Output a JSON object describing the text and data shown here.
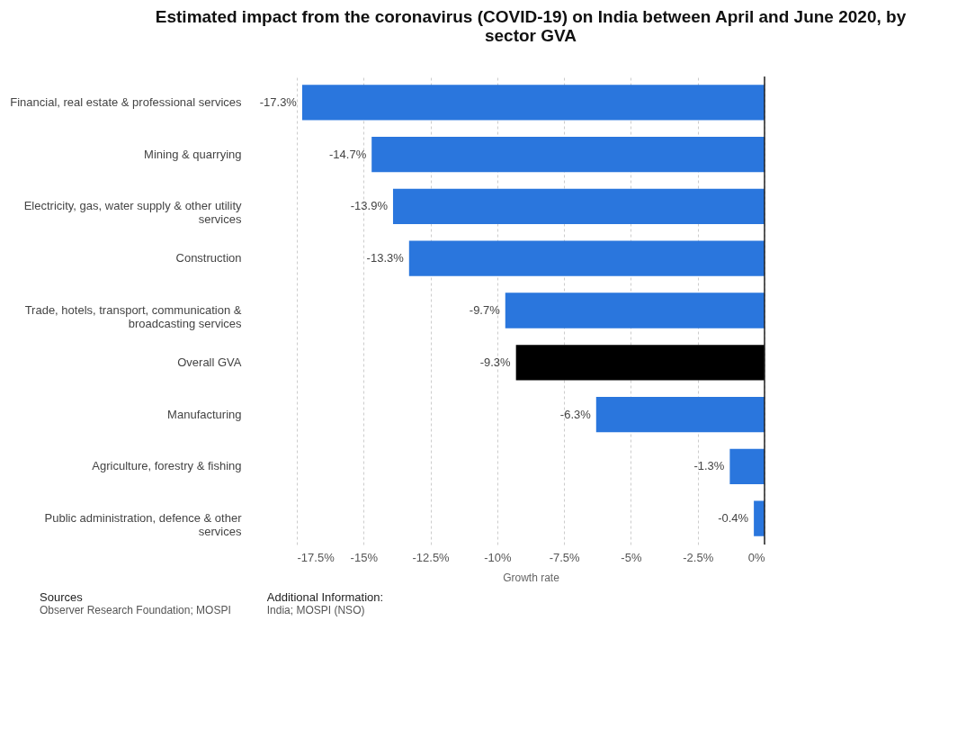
{
  "chart_data": {
    "type": "bar",
    "orientation": "horizontal",
    "title": "Estimated impact from the coronavirus (COVID-19) on India between April and June 2020, by sector GVA",
    "xlabel": "Growth rate",
    "categories": [
      "Financial, real estate & professional services",
      "Mining & quarrying",
      "Electricity, gas, water supply & other utility services",
      "Construction",
      "Trade, hotels, transport, communication & broadcasting services",
      "Overall GVA",
      "Manufacturing",
      "Agriculture, forestry & fishing",
      "Public administration, defence & other services"
    ],
    "values": [
      -17.3,
      -14.7,
      -13.9,
      -13.3,
      -9.7,
      -9.3,
      -6.3,
      -1.3,
      -0.4
    ],
    "value_labels": [
      "-17.3%",
      "-14.7%",
      "-13.9%",
      "-13.3%",
      "-9.7%",
      "-9.3%",
      "-6.3%",
      "-1.3%",
      "-0.4%"
    ],
    "colors": [
      "#2a76dd",
      "#2a76dd",
      "#2a76dd",
      "#2a76dd",
      "#2a76dd",
      "#000000",
      "#2a76dd",
      "#2a76dd",
      "#2a76dd"
    ],
    "xlim": [
      -17.5,
      0
    ],
    "xticks": [
      {
        "value": -17.5,
        "label": "-17.5%"
      },
      {
        "value": -15,
        "label": "-15%"
      },
      {
        "value": -12.5,
        "label": "-12.5%"
      },
      {
        "value": -10,
        "label": "-10%"
      },
      {
        "value": -7.5,
        "label": "-7.5%"
      },
      {
        "value": -5,
        "label": "-5%"
      },
      {
        "value": -2.5,
        "label": "-2.5%"
      },
      {
        "value": 0,
        "label": "0%"
      }
    ],
    "grid": "x",
    "annotations": [
      "Sources",
      "Observer Research Foundation; MOSPI",
      "Additional Information:",
      "India; MOSPI (NSO)"
    ]
  }
}
